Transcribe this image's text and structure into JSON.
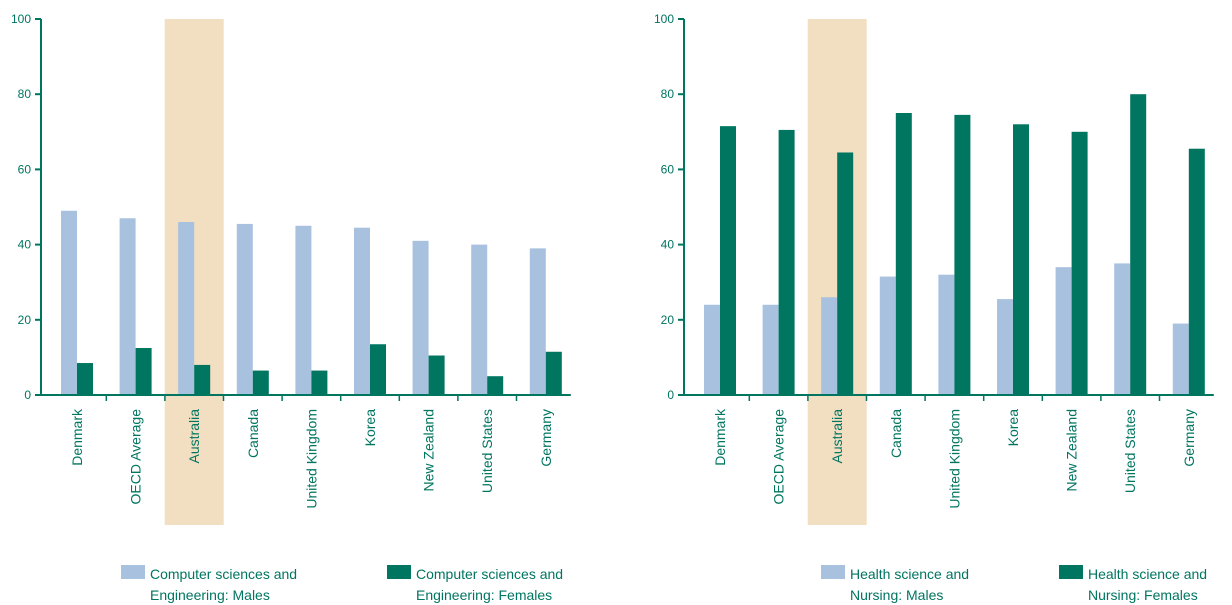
{
  "colors": {
    "males": "#a8c1df",
    "females": "#007560",
    "axis": "#007560",
    "text": "#007560",
    "highlight": "#f2dfc2"
  },
  "chart_data": [
    {
      "type": "bar",
      "categories": [
        "Denmark",
        "OECD Average",
        "Australia",
        "Canada",
        "United Kingdom",
        "Korea",
        "New Zealand",
        "United States",
        "Germany"
      ],
      "highlight_category": "Australia",
      "series": [
        {
          "name": "Computer sciences and Engineering: Males",
          "color_key": "males",
          "values": [
            49,
            47,
            46,
            45.5,
            45,
            44.5,
            41,
            40,
            39
          ]
        },
        {
          "name": "Computer sciences and Engineering: Females",
          "color_key": "females",
          "values": [
            8.5,
            12.5,
            8,
            6.5,
            6.5,
            13.5,
            10.5,
            5,
            11.5
          ]
        }
      ],
      "ylim": [
        0,
        100
      ],
      "yticks": [
        0,
        20,
        40,
        60,
        80,
        100
      ],
      "grid": false,
      "legend_position": "bottom",
      "legend": [
        {
          "lines": [
            "Computer sciences and",
            "Engineering: Males"
          ],
          "color_key": "males"
        },
        {
          "lines": [
            "Computer sciences and",
            "Engineering: Females"
          ],
          "color_key": "females"
        }
      ]
    },
    {
      "type": "bar",
      "categories": [
        "Denmark",
        "OECD Average",
        "Australia",
        "Canada",
        "United Kingdom",
        "Korea",
        "New Zealand",
        "United States",
        "Germany"
      ],
      "highlight_category": "Australia",
      "series": [
        {
          "name": "Health science and Nursing: Males",
          "color_key": "males",
          "values": [
            24,
            24,
            26,
            31.5,
            32,
            25.5,
            34,
            35,
            19
          ]
        },
        {
          "name": "Health science and Nursing: Females",
          "color_key": "females",
          "values": [
            71.5,
            70.5,
            64.5,
            75,
            74.5,
            72,
            70,
            80,
            65.5
          ]
        }
      ],
      "ylim": [
        0,
        100
      ],
      "yticks": [
        0,
        20,
        40,
        60,
        80,
        100
      ],
      "grid": false,
      "legend_position": "bottom",
      "legend": [
        {
          "lines": [
            "Health science and",
            "Nursing: Males"
          ],
          "color_key": "males"
        },
        {
          "lines": [
            "Health science and",
            "Nursing: Females"
          ],
          "color_key": "females"
        }
      ]
    }
  ]
}
